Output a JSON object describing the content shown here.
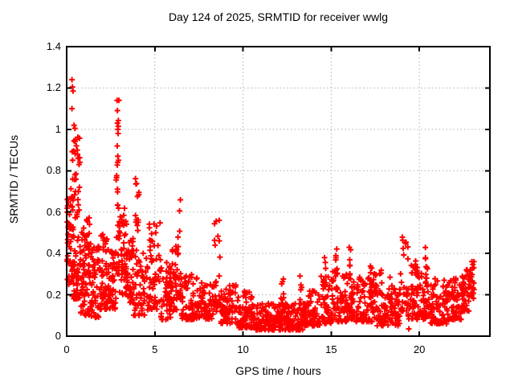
{
  "title": "Day 124 of 2025, SRMTID for receiver wwlg",
  "xlabel": "GPS time / hours",
  "ylabel": "SRMTID / TECUs",
  "chart_data": {
    "type": "scatter",
    "title": "Day 124 of 2025, SRMTID for receiver wwlg",
    "xlabel": "GPS time / hours",
    "ylabel": "SRMTID / TECUs",
    "xlim": [
      0,
      24
    ],
    "ylim": [
      0,
      1.4
    ],
    "x_tick_values": [
      0,
      5,
      10,
      15,
      20
    ],
    "x_tick_labels": [
      "0",
      "5",
      "10",
      "15",
      "20"
    ],
    "y_tick_values": [
      0,
      0.2,
      0.4,
      0.6,
      0.8,
      1.0,
      1.2,
      1.4
    ],
    "y_tick_labels": [
      "0",
      "0.2",
      "0.4",
      "0.6",
      "0.8",
      "1",
      "1.2",
      "1.4"
    ],
    "grid": true,
    "legend": "none",
    "marker": "plus",
    "marker_color": "#ff0000",
    "grid_color": "#b0b0b0",
    "axis_color": "#000000",
    "background_color": "#ffffff",
    "seed": 124,
    "segments_format": [
      "t_start_hours",
      "t_end_hours",
      "n_points",
      "value_min_TECU",
      "value_max_TECU",
      "low_bias_exponent"
    ],
    "segments": [
      [
        0.02,
        0.35,
        45,
        0.25,
        0.72,
        1.2
      ],
      [
        0.3,
        0.75,
        70,
        0.18,
        1.0,
        1.8
      ],
      [
        0.75,
        1.3,
        80,
        0.1,
        0.58,
        1.5
      ],
      [
        1.3,
        1.9,
        60,
        0.09,
        0.45,
        1.4
      ],
      [
        1.9,
        2.4,
        55,
        0.13,
        0.52,
        1.4
      ],
      [
        2.4,
        2.8,
        40,
        0.13,
        0.42,
        1.3
      ],
      [
        2.8,
        3.0,
        30,
        0.3,
        1.15,
        2.2
      ],
      [
        3.0,
        3.4,
        45,
        0.2,
        0.62,
        1.4
      ],
      [
        3.4,
        3.8,
        50,
        0.15,
        0.48,
        1.2
      ],
      [
        3.9,
        4.1,
        14,
        0.5,
        0.77,
        1.0
      ],
      [
        3.8,
        4.6,
        55,
        0.1,
        0.42,
        1.5
      ],
      [
        4.6,
        5.3,
        55,
        0.13,
        0.55,
        1.6
      ],
      [
        5.3,
        5.9,
        50,
        0.08,
        0.38,
        1.5
      ],
      [
        5.9,
        6.25,
        35,
        0.12,
        0.45,
        1.4
      ],
      [
        6.25,
        6.5,
        22,
        0.18,
        0.67,
        1.8
      ],
      [
        6.5,
        7.6,
        80,
        0.08,
        0.3,
        1.6
      ],
      [
        7.6,
        8.3,
        55,
        0.08,
        0.26,
        1.5
      ],
      [
        8.3,
        8.7,
        30,
        0.12,
        0.57,
        2.0
      ],
      [
        8.7,
        9.6,
        70,
        0.06,
        0.25,
        1.6
      ],
      [
        9.6,
        10.6,
        80,
        0.04,
        0.22,
        1.7
      ],
      [
        10.6,
        13.4,
        220,
        0.03,
        0.16,
        1.5
      ],
      [
        12.1,
        12.3,
        10,
        0.1,
        0.28,
        1.3
      ],
      [
        13.2,
        13.5,
        10,
        0.1,
        0.3,
        1.3
      ],
      [
        13.4,
        14.4,
        80,
        0.05,
        0.22,
        1.6
      ],
      [
        14.4,
        15.0,
        50,
        0.06,
        0.3,
        1.6
      ],
      [
        14.55,
        14.7,
        8,
        0.22,
        0.4,
        1.0
      ],
      [
        15.0,
        15.6,
        50,
        0.07,
        0.32,
        1.6
      ],
      [
        15.2,
        15.35,
        8,
        0.25,
        0.43,
        1.0
      ],
      [
        15.6,
        16.4,
        60,
        0.07,
        0.3,
        1.7
      ],
      [
        16.0,
        16.12,
        8,
        0.25,
        0.43,
        1.0
      ],
      [
        16.4,
        17.6,
        90,
        0.07,
        0.3,
        1.7
      ],
      [
        17.2,
        17.32,
        8,
        0.2,
        0.36,
        1.0
      ],
      [
        17.4,
        17.52,
        6,
        0.2,
        0.33,
        1.0
      ],
      [
        17.6,
        18.9,
        95,
        0.05,
        0.25,
        1.7
      ],
      [
        17.75,
        17.87,
        6,
        0.18,
        0.33,
        1.0
      ],
      [
        18.25,
        18.37,
        5,
        0.16,
        0.3,
        1.0
      ],
      [
        18.9,
        19.35,
        30,
        0.12,
        0.53,
        1.8
      ],
      [
        19.35,
        20.1,
        55,
        0.08,
        0.35,
        1.6
      ],
      [
        19.75,
        19.87,
        8,
        0.25,
        0.43,
        1.0
      ],
      [
        20.1,
        20.6,
        40,
        0.08,
        0.35,
        1.5
      ],
      [
        20.3,
        20.42,
        8,
        0.26,
        0.44,
        1.0
      ],
      [
        20.6,
        21.6,
        75,
        0.06,
        0.28,
        1.7
      ],
      [
        21.6,
        22.4,
        65,
        0.08,
        0.28,
        1.6
      ],
      [
        22.4,
        22.85,
        45,
        0.12,
        0.33,
        1.3
      ],
      [
        22.8,
        23.1,
        30,
        0.18,
        0.38,
        1.1
      ]
    ],
    "notable_points": [
      [
        0.3,
        1.24
      ],
      [
        0.33,
        1.205
      ],
      [
        0.36,
        1.185
      ],
      [
        0.3,
        1.1
      ],
      [
        0.42,
        1.02
      ],
      [
        0.47,
        1.005
      ],
      [
        0.5,
        0.95
      ],
      [
        0.55,
        0.92
      ],
      [
        0.6,
        0.9
      ],
      [
        0.65,
        0.86
      ],
      [
        0.7,
        0.83
      ],
      [
        0.04,
        0.66
      ],
      [
        0.06,
        0.63
      ],
      [
        0.03,
        0.6
      ],
      [
        2.86,
        1.14
      ],
      [
        2.88,
        1.03
      ],
      [
        2.9,
        1.0
      ],
      [
        2.92,
        0.98
      ],
      [
        2.9,
        0.87
      ],
      [
        2.94,
        0.85
      ],
      [
        19.4,
        0.035
      ]
    ]
  }
}
